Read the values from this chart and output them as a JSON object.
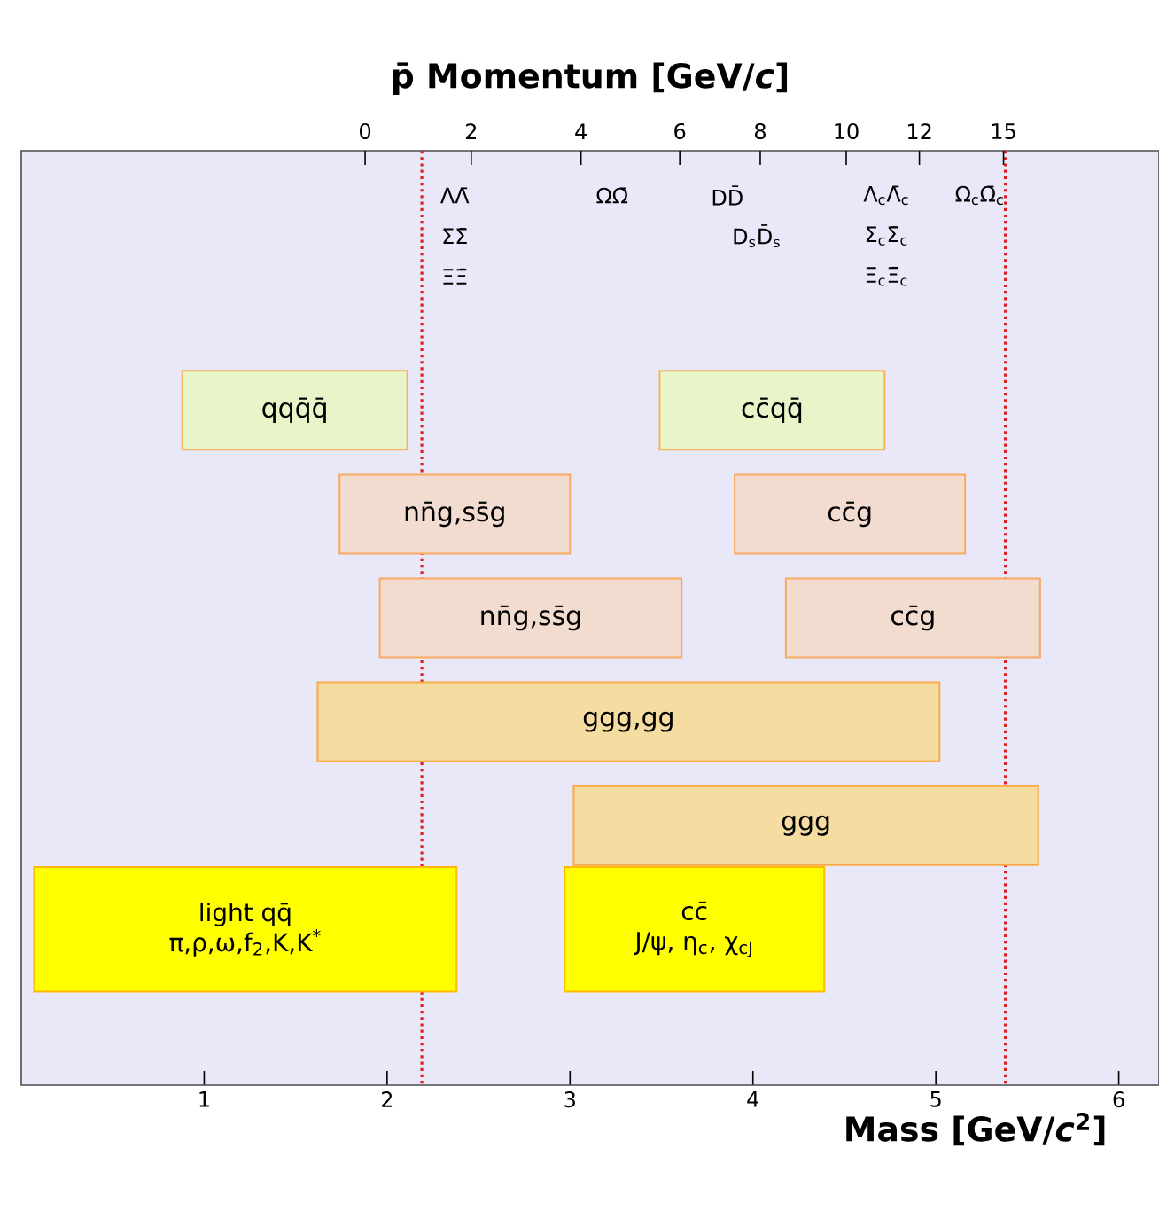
{
  "chart_data": {
    "type": "bar",
    "orientation": "horizontal",
    "title": "p̄ Momentum [GeV/*c*]",
    "xlabel": "Mass [GeV/*c*$^{2}$]",
    "categories": [
      null,
      null,
      null,
      null,
      null,
      null,
      null,
      null,
      null
    ],
    "xlim": [
      0,
      6.22
    ],
    "xticks": [
      1,
      2,
      3,
      4,
      5,
      6
    ],
    "series": [
      {
        "base": [
          null,
          null,
          0.88,
          1.74,
          1.96,
          1.62,
          null,
          0.07,
          null
        ],
        "values": [
          null,
          null,
          1.23,
          1.26,
          1.65,
          3.4,
          null,
          2.31,
          null
        ],
        "colors": [
          null,
          null,
          "#e8f5c8",
          "#f2dcd0",
          "#f2dcd0",
          "#f5dca0",
          null,
          "#ffff00",
          null
        ],
        "value_labels": [
          null,
          null,
          "qqq̄q̄",
          "nn̄g,ss̄g",
          "nn̄g,ss̄g",
          "ggg,gg",
          null,
          "light qq̄",
          null
        ]
      },
      {
        "base": [
          null,
          null,
          3.49,
          3.9,
          4.18,
          null,
          3.02,
          2.97,
          null
        ],
        "values": [
          null,
          null,
          1.23,
          1.26,
          1.39,
          null,
          2.54,
          1.42,
          null
        ],
        "colors": [
          null,
          null,
          "#e8f5c8",
          "#f2dcd0",
          "#f2dcd0",
          null,
          "#f5dca0",
          "#ffff00",
          null
        ],
        "value_labels": [
          null,
          null,
          "cc̄qq̄",
          "cc̄g",
          "cc̄g",
          null,
          "ggg",
          "cc̄",
          null
        ]
      }
    ],
    "ref_lines": [
      {
        "axis": "x",
        "value": 2.19,
        "color": "#e02020",
        "line_style": "dotted"
      },
      {
        "axis": "x",
        "value": 5.38,
        "color": "#e02020",
        "line_style": "dotted"
      }
    ],
    "annotations": [
      "π,ρ,ω,f$_{2}$,K,K$^{*}$",
      "J/ψ, η$_{c}$, χ$_{cJ}$",
      "0",
      "2",
      "4",
      "6",
      "8",
      "10",
      "12",
      "15",
      "ΛΛ̄",
      "ΣΣ̄",
      "ΞΞ̄",
      "ΩΩ̄",
      "DD̄",
      "D$_{s}$D̄$_{s}$",
      "Λ$_{c}$Λ̄$_{c}$",
      "Σ$_{c}$Σ̄$_{c}$",
      "Ξ$_{c}$Ξ̄$_{c}$",
      "Ω$_{c}$Ω̄$_{c}$"
    ]
  }
}
